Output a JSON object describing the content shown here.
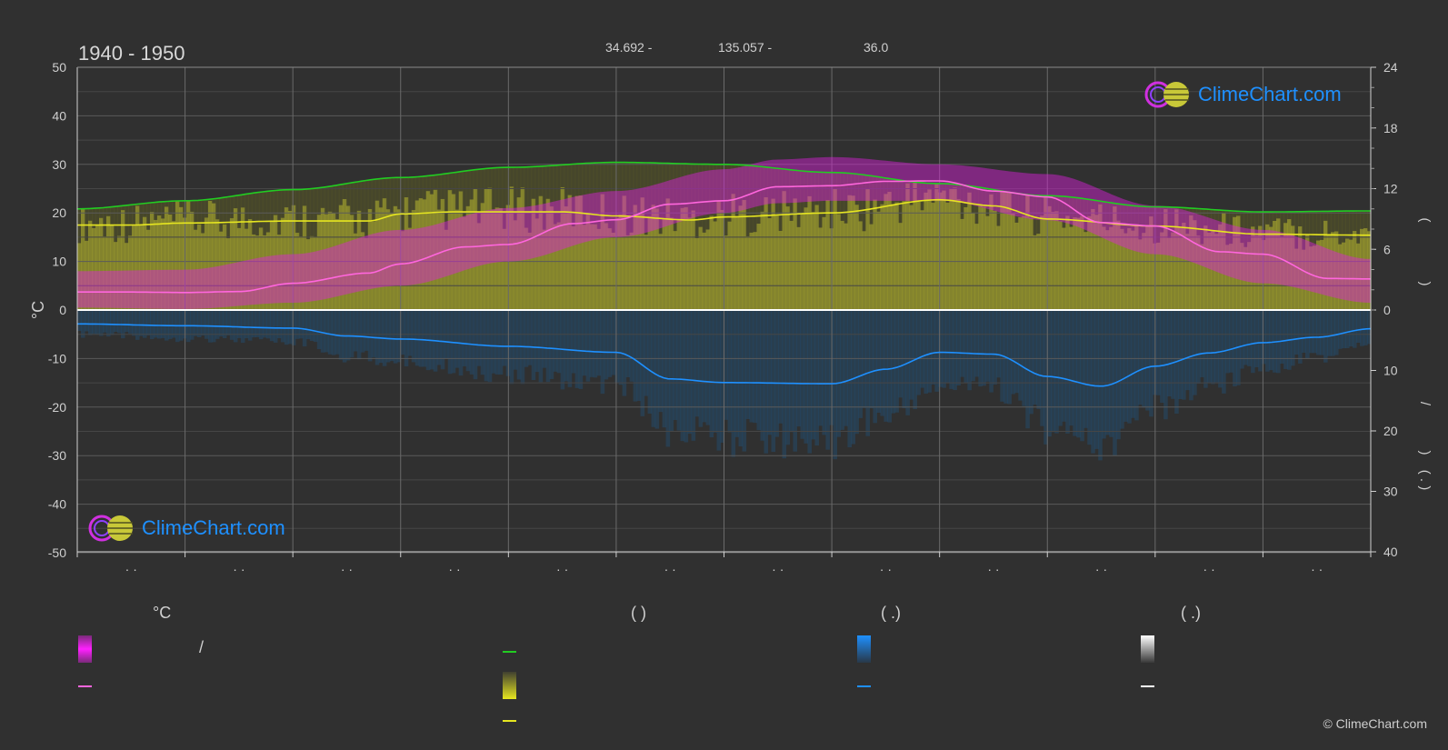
{
  "header": {
    "title": "1940 - 1950",
    "lat": "34.692 -",
    "lon": "135.057 -",
    "elev": "36.0"
  },
  "brand": {
    "logo_text": "ClimeChart.com",
    "copyright": "© ClimeChart.com"
  },
  "legend": {
    "col1_head": "°C",
    "col2_head": "(          )",
    "col3_head": "(    .)",
    "col4_head": "(    .)",
    "slash": "/"
  },
  "colors": {
    "background": "#303030",
    "daylight": "#22cc22",
    "sunshine": "#e6e620",
    "temp_mean": "#ff66dd",
    "temp_band": "#e020e0",
    "precip": "#1e90ff",
    "snow": "#ffffff"
  },
  "chart_data": {
    "type": "line",
    "left_axis": {
      "label": "°C",
      "range": [
        -50,
        50
      ],
      "ticks": [
        50,
        40,
        30,
        20,
        10,
        0,
        -10,
        -20,
        -30,
        -40,
        -50
      ]
    },
    "right_axis_top": {
      "label": "",
      "range": [
        0,
        24
      ],
      "ticks": [
        24,
        18,
        12,
        6,
        0
      ]
    },
    "right_axis_bottom": {
      "label": "",
      "range": [
        0,
        40
      ],
      "ticks": [
        0,
        10,
        20,
        30,
        40
      ]
    },
    "right_axis_symbols": [
      "(",
      ")",
      "/",
      "( . )"
    ],
    "month_tick_labels": [
      "· ·",
      "· ·",
      "· ·",
      "· ·",
      "· ·",
      "· ·",
      "· ·",
      "· ·",
      "· ·",
      "· ·",
      "· ·",
      "· ·"
    ],
    "grid": true,
    "series": [
      {
        "key": "daylight",
        "points": [
          [
            0,
            10.0
          ],
          [
            1,
            10.8
          ],
          [
            2,
            11.9
          ],
          [
            3,
            13.1
          ],
          [
            4,
            14.1
          ],
          [
            5,
            14.6
          ],
          [
            6,
            14.4
          ],
          [
            7,
            13.6
          ],
          [
            8,
            12.5
          ],
          [
            9,
            11.3
          ],
          [
            10,
            10.2
          ],
          [
            11,
            9.7
          ],
          [
            12,
            9.8
          ]
        ]
      },
      {
        "key": "sunshine",
        "points": [
          [
            0,
            8.4
          ],
          [
            0.5,
            8.4
          ],
          [
            1,
            8.6
          ],
          [
            2,
            8.8
          ],
          [
            2.7,
            8.8
          ],
          [
            3,
            9.5
          ],
          [
            3.5,
            9.7
          ],
          [
            4.5,
            9.7
          ],
          [
            5,
            9.3
          ],
          [
            5.7,
            8.9
          ],
          [
            6,
            9.2
          ],
          [
            7,
            9.6
          ],
          [
            8,
            10.9
          ],
          [
            8.5,
            10.3
          ],
          [
            9,
            9.0
          ],
          [
            10,
            8.3
          ],
          [
            11,
            7.5
          ],
          [
            12,
            7.4
          ]
        ]
      },
      {
        "key": "temp_mean",
        "points": [
          [
            0,
            3.7
          ],
          [
            0.5,
            3.7
          ],
          [
            1,
            3.6
          ],
          [
            1.5,
            3.8
          ],
          [
            2,
            5.5
          ],
          [
            2.7,
            7.6
          ],
          [
            3,
            9.5
          ],
          [
            3.6,
            13.0
          ],
          [
            4,
            13.5
          ],
          [
            4.6,
            17.8
          ],
          [
            5,
            18.6
          ],
          [
            5.5,
            21.8
          ],
          [
            6,
            22.5
          ],
          [
            6.5,
            25.4
          ],
          [
            7,
            25.6
          ],
          [
            7.5,
            26.5
          ],
          [
            8,
            26.6
          ],
          [
            8.5,
            24.5
          ],
          [
            9,
            23.3
          ],
          [
            9.5,
            18.0
          ],
          [
            10,
            17.3
          ],
          [
            10.6,
            12.0
          ],
          [
            11,
            11.5
          ],
          [
            11.6,
            6.5
          ],
          [
            12,
            6.4
          ]
        ]
      },
      {
        "key": "temp_max_band",
        "points": [
          [
            0,
            8
          ],
          [
            1,
            8.3
          ],
          [
            2,
            11.5
          ],
          [
            3,
            16.5
          ],
          [
            4,
            21
          ],
          [
            5,
            24.5
          ],
          [
            6,
            29
          ],
          [
            6.5,
            31
          ],
          [
            7,
            31.5
          ],
          [
            8,
            30
          ],
          [
            9,
            28
          ],
          [
            10,
            21.5
          ],
          [
            11,
            16.5
          ],
          [
            12,
            10.5
          ]
        ]
      },
      {
        "key": "temp_min_band",
        "points": [
          [
            0,
            0.5
          ],
          [
            1,
            0.2
          ],
          [
            2,
            1.5
          ],
          [
            3,
            5
          ],
          [
            4,
            10
          ],
          [
            5,
            15
          ],
          [
            6,
            20
          ],
          [
            6.5,
            22
          ],
          [
            7,
            22.5
          ],
          [
            8,
            22.5
          ],
          [
            9,
            18.5
          ],
          [
            10,
            11.5
          ],
          [
            11,
            5.5
          ],
          [
            12,
            1.5
          ]
        ]
      },
      {
        "key": "precipitation",
        "points": [
          [
            0,
            2.3
          ],
          [
            1,
            2.6
          ],
          [
            2,
            3.0
          ],
          [
            2.5,
            4.3
          ],
          [
            3,
            4.8
          ],
          [
            4,
            6.0
          ],
          [
            5,
            7.0
          ],
          [
            5.5,
            11.4
          ],
          [
            6,
            12.0
          ],
          [
            7,
            12.2
          ],
          [
            7.5,
            9.8
          ],
          [
            8,
            7.0
          ],
          [
            8.5,
            7.3
          ],
          [
            9,
            11.0
          ],
          [
            9.5,
            12.6
          ],
          [
            10,
            9.3
          ],
          [
            10.5,
            7.1
          ],
          [
            11,
            5.4
          ],
          [
            11.5,
            4.5
          ],
          [
            12,
            3.1
          ]
        ]
      },
      {
        "key": "snow",
        "points": [
          [
            0,
            0
          ],
          [
            12,
            0
          ]
        ]
      }
    ]
  }
}
